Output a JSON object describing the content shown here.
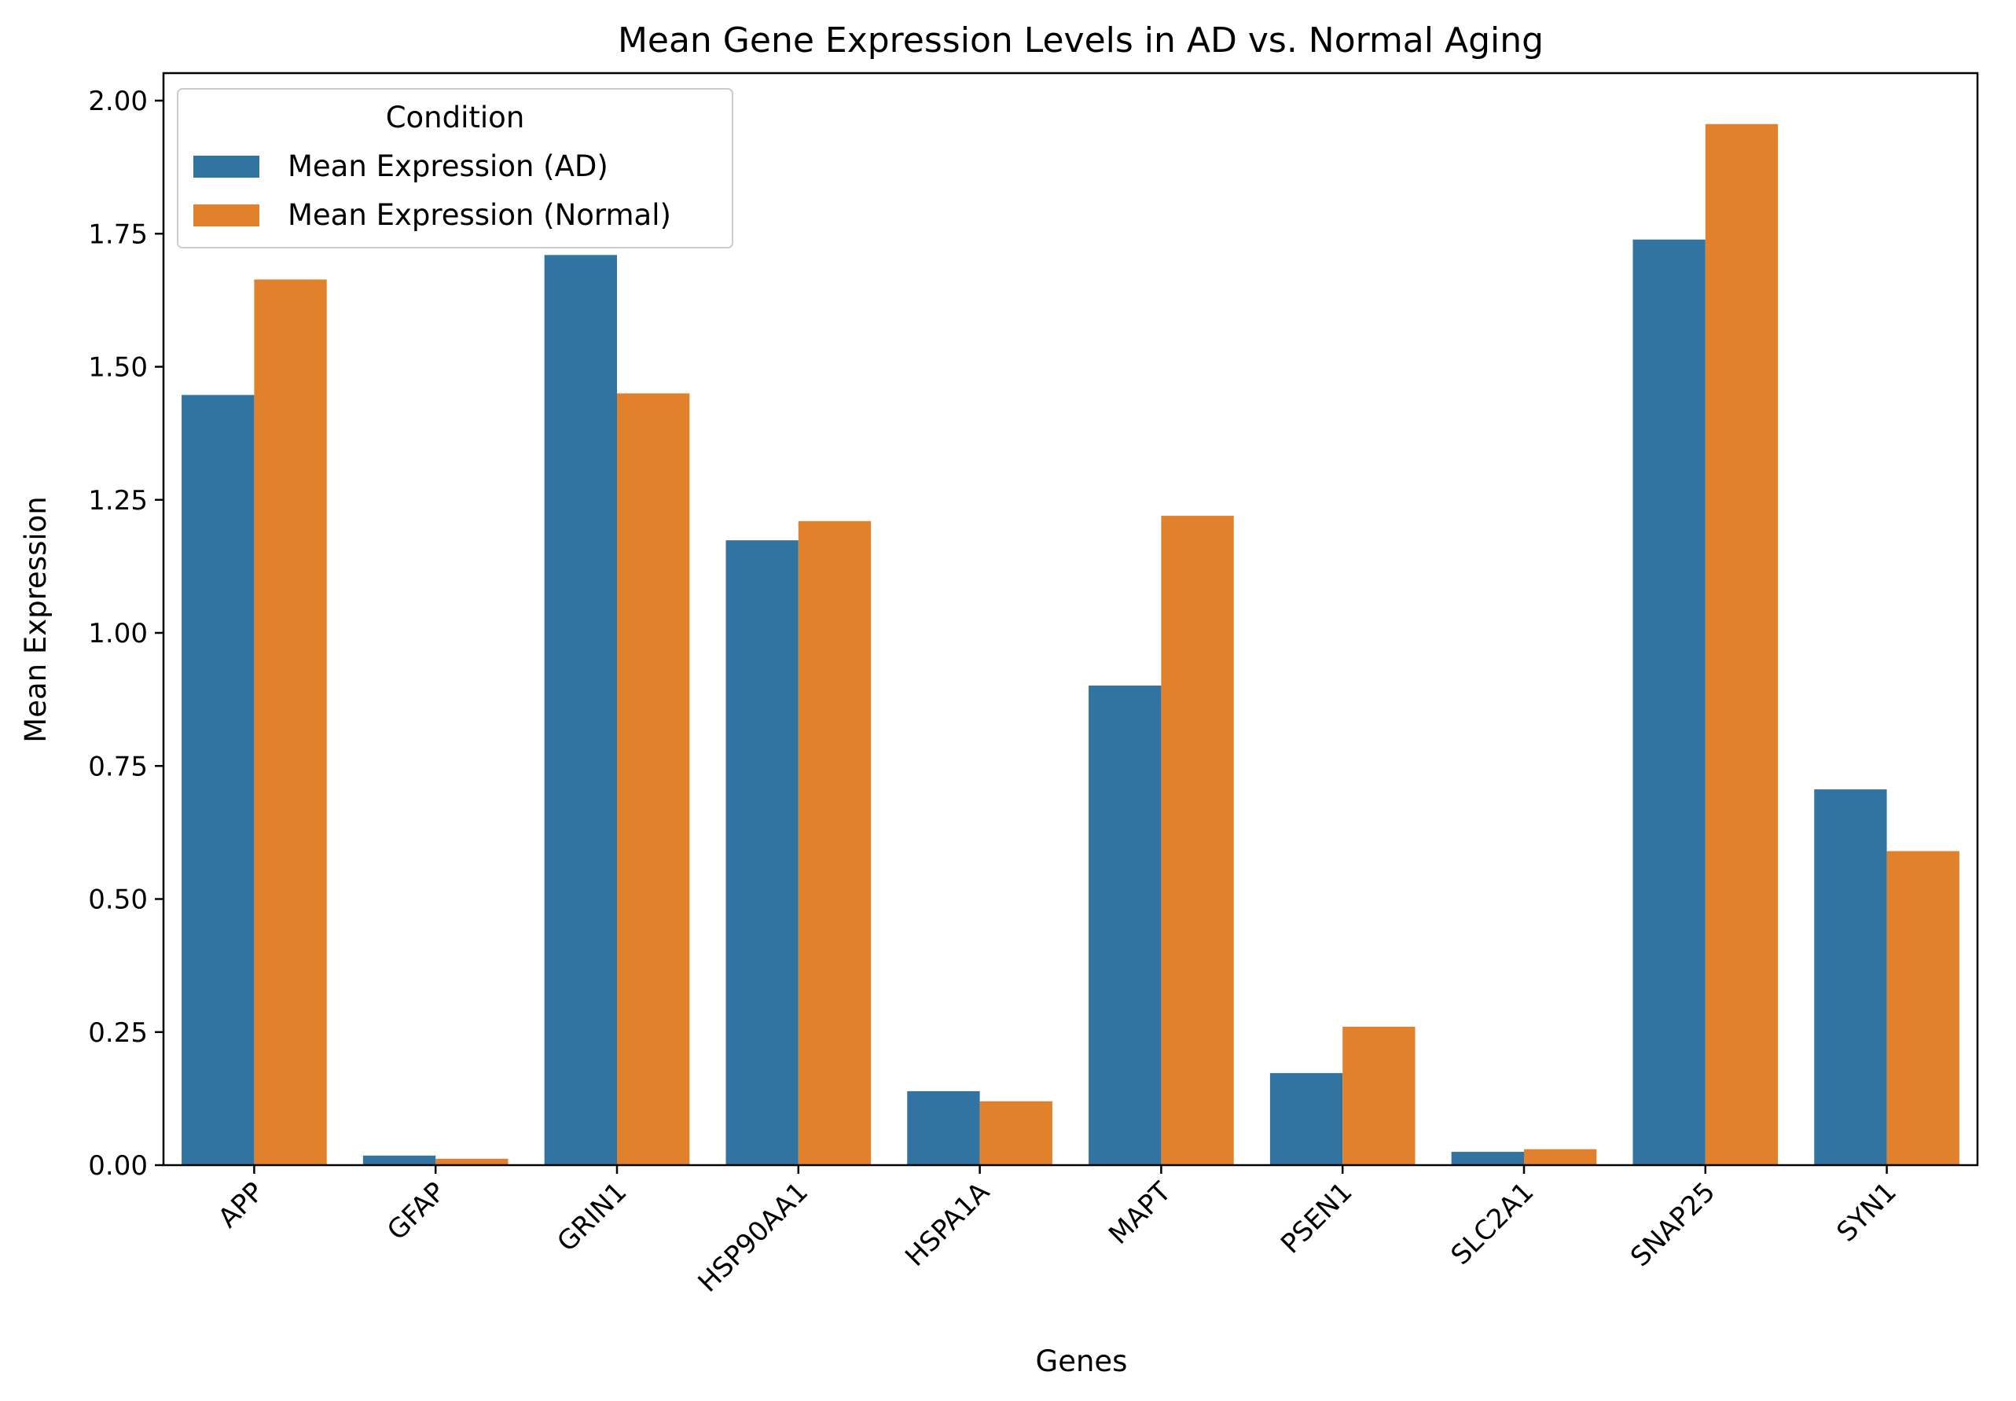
{
  "chart_data": {
    "type": "bar",
    "title": "Mean Gene Expression Levels in AD vs. Normal Aging",
    "xlabel": "Genes",
    "ylabel": "Mean Expression",
    "categories": [
      "APP",
      "GFAP",
      "GRIN1",
      "HSP90AA1",
      "HSPA1A",
      "MAPT",
      "PSEN1",
      "SLC2A1",
      "SNAP25",
      "SYN1"
    ],
    "series": [
      {
        "name": "Mean Expression (AD)",
        "color": "#3274a1",
        "values": [
          1.447,
          0.018,
          1.71,
          1.174,
          0.139,
          0.901,
          0.173,
          0.025,
          1.739,
          0.706
        ]
      },
      {
        "name": "Mean Expression (Normal)",
        "color": "#e1812c",
        "values": [
          1.664,
          0.012,
          1.45,
          1.21,
          0.12,
          1.22,
          0.26,
          0.03,
          1.956,
          0.59
        ]
      }
    ],
    "ylim": [
      0,
      2.0
    ],
    "yticks": [
      "0.00",
      "0.25",
      "0.50",
      "0.75",
      "1.00",
      "1.25",
      "1.50",
      "1.75",
      "2.00"
    ],
    "ytick_values": [
      0,
      0.25,
      0.5,
      0.75,
      1.0,
      1.25,
      1.5,
      1.75,
      2.0
    ],
    "grid": false,
    "legend": {
      "title": "Condition",
      "placement": "upper-left"
    }
  }
}
